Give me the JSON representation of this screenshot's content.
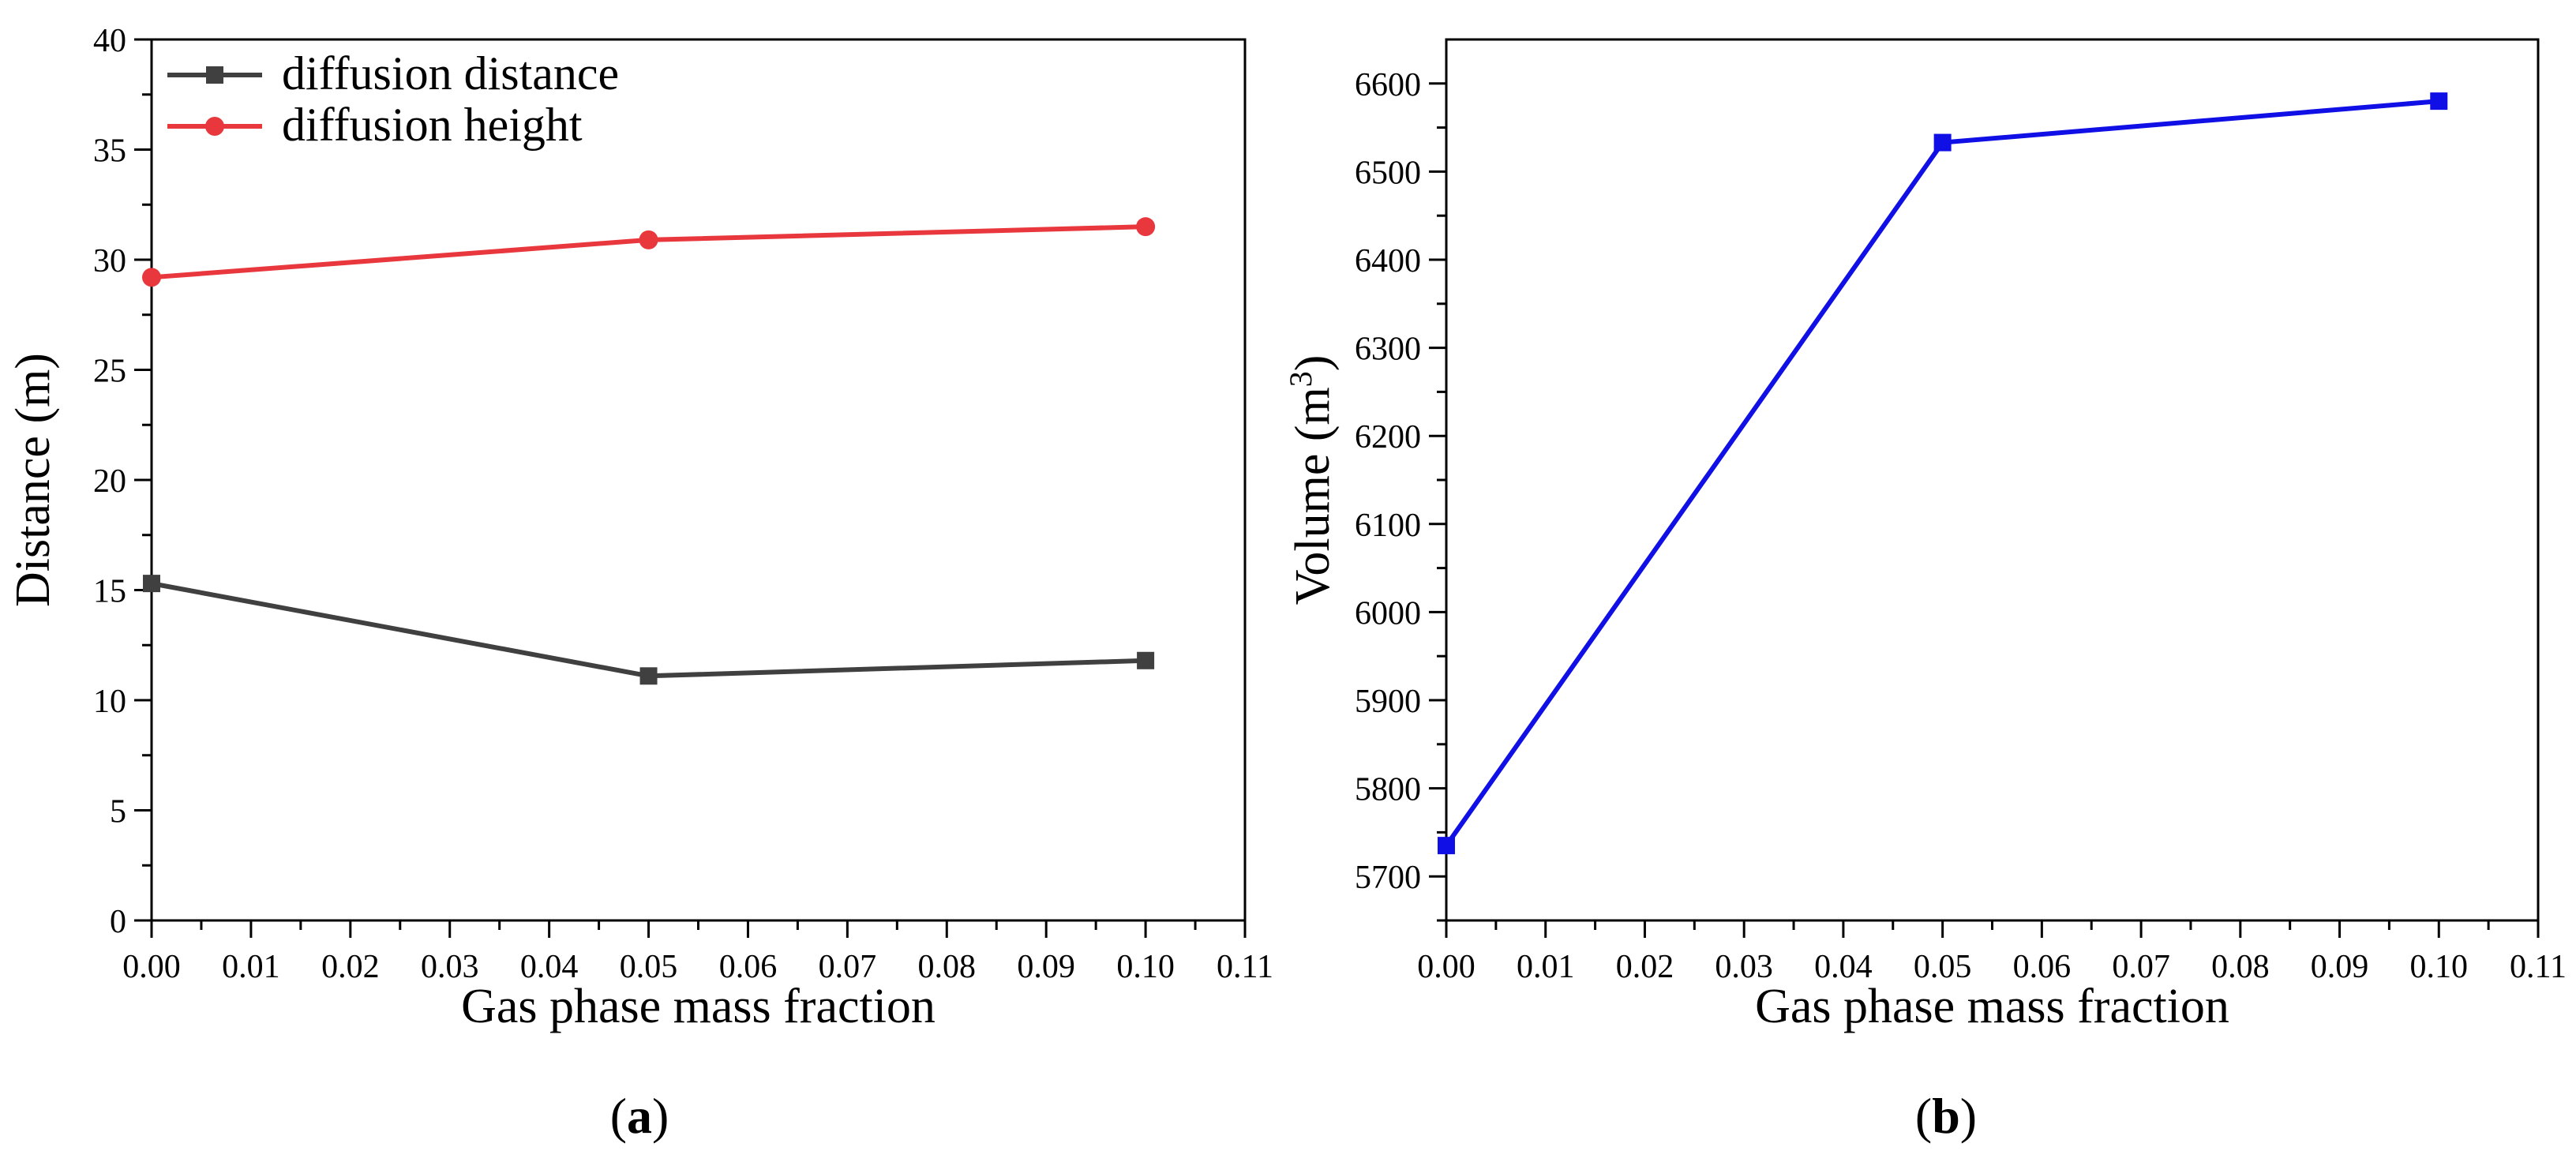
{
  "chart_data": [
    {
      "type": "line",
      "panel_label": {
        "open": "(",
        "letter": "a",
        "close": ")"
      },
      "xlabel": "Gas phase mass fraction",
      "ylabel": "Distance (m)",
      "xlim": [
        0,
        0.11
      ],
      "ylim": [
        0,
        40
      ],
      "x_ticks": [
        "0.00",
        "0.01",
        "0.02",
        "0.03",
        "0.04",
        "0.05",
        "0.06",
        "0.07",
        "0.08",
        "0.09",
        "0.10",
        "0.11"
      ],
      "y_ticks": [
        "0",
        "5",
        "10",
        "15",
        "20",
        "25",
        "30",
        "35",
        "40"
      ],
      "legend_position": "top-left",
      "x": [
        0.0,
        0.05,
        0.1
      ],
      "series": [
        {
          "name": "diffusion distance",
          "values": [
            15.3,
            11.1,
            11.8
          ],
          "color": "#404040",
          "marker": "square"
        },
        {
          "name": "diffusion height",
          "values": [
            29.2,
            30.9,
            31.5
          ],
          "color": "#e8383d",
          "marker": "circle"
        }
      ]
    },
    {
      "type": "line",
      "panel_label": {
        "open": "(",
        "letter": "b",
        "close": ")"
      },
      "xlabel": "Gas phase mass fraction",
      "ylabel": {
        "base": "Volume (m",
        "sup": "3",
        "close": ")"
      },
      "xlim": [
        0,
        0.11
      ],
      "ylim": [
        5650,
        6650
      ],
      "x_ticks": [
        "0.00",
        "0.01",
        "0.02",
        "0.03",
        "0.04",
        "0.05",
        "0.06",
        "0.07",
        "0.08",
        "0.09",
        "0.10",
        "0.11"
      ],
      "y_ticks": [
        "5700",
        "5800",
        "5900",
        "6000",
        "6100",
        "6200",
        "6300",
        "6400",
        "6500",
        "6600"
      ],
      "x": [
        0.0,
        0.05,
        0.1
      ],
      "series": [
        {
          "name": "Volume",
          "values": [
            5735,
            6533,
            6580
          ],
          "color": "#0f0fe6",
          "marker": "square"
        }
      ]
    }
  ]
}
